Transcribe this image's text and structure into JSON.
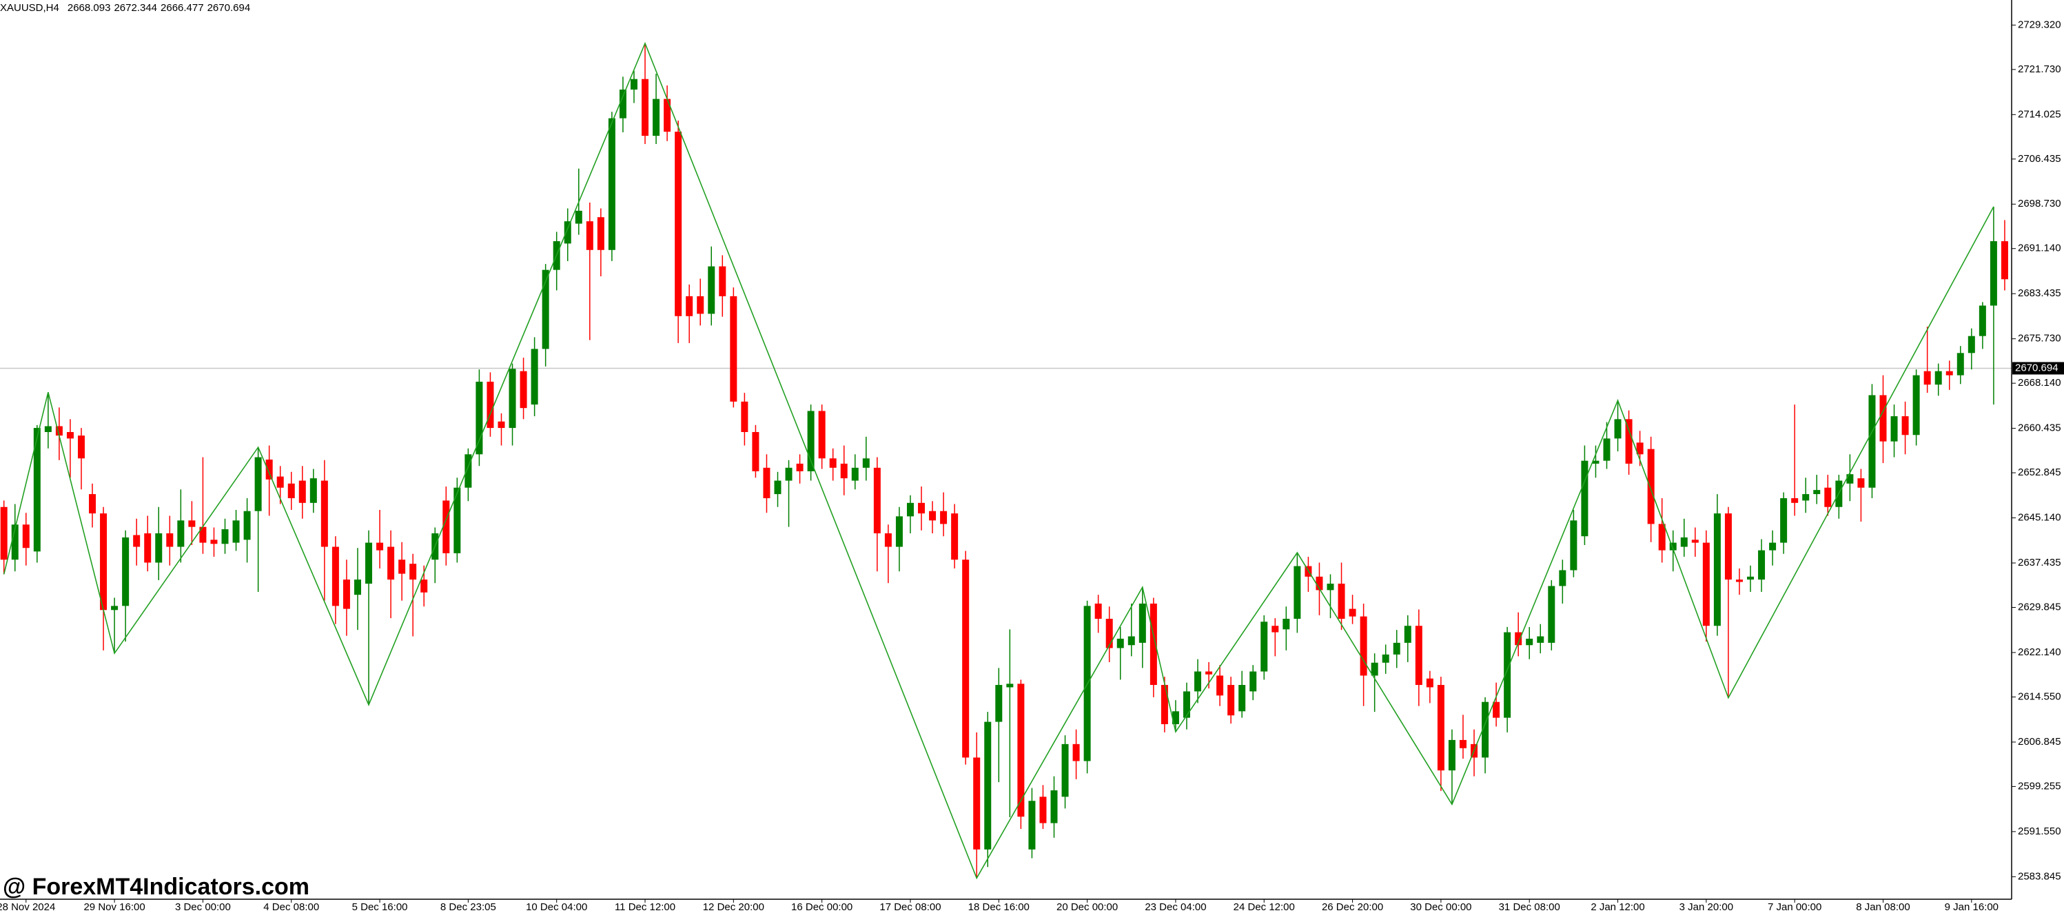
{
  "chart_data": {
    "type": "candlestick",
    "symbol": "XAUUSD,H4",
    "quote": [
      2668.093,
      2672.344,
      2666.477,
      2670.694
    ],
    "watermark": "@ ForexMT4Indicators.com",
    "up_color": "#008000",
    "down_color": "#ff0000",
    "bid": 2670.694,
    "ylim": [
      2580.0,
      2733.6
    ],
    "yticks": [
      {
        "value": 2729.32,
        "label": "2729.320"
      },
      {
        "value": 2721.73,
        "label": "2721.730"
      },
      2714.025,
      2706.435,
      {
        "value": 2698.73,
        "label": "2698.730"
      },
      {
        "value": 2691.14,
        "label": "2691.140"
      },
      2683.435,
      {
        "value": 2675.73,
        "label": "2675.730"
      },
      {
        "value": 2668.14,
        "label": "2668.140"
      },
      2660.435,
      2652.845,
      {
        "value": 2645.14,
        "label": "2645.140"
      },
      2637.435,
      2629.845,
      {
        "value": 2622.14,
        "label": "2622.140"
      },
      {
        "value": 2614.55,
        "label": "2614.550"
      },
      2606.845,
      2599.255,
      {
        "value": 2591.55,
        "label": "2591.550"
      },
      2583.845
    ],
    "categories": [
      null,
      null,
      "28 Nov 2024",
      null,
      null,
      null,
      null,
      null,
      null,
      null,
      "29 Nov 16:00",
      null,
      null,
      null,
      null,
      null,
      null,
      null,
      "3 Dec 00:00",
      null,
      null,
      null,
      null,
      null,
      null,
      null,
      "4 Dec 08:00",
      null,
      null,
      null,
      null,
      null,
      null,
      null,
      "5 Dec 16:00",
      null,
      null,
      null,
      null,
      null,
      null,
      null,
      "8 Dec 23:05",
      null,
      null,
      null,
      null,
      null,
      null,
      null,
      "10 Dec 04:00",
      null,
      null,
      null,
      null,
      null,
      null,
      null,
      "11 Dec 12:00",
      null,
      null,
      null,
      null,
      null,
      null,
      null,
      "12 Dec 20:00",
      null,
      null,
      null,
      null,
      null,
      null,
      null,
      "16 Dec 00:00",
      null,
      null,
      null,
      null,
      null,
      null,
      null,
      "17 Dec 08:00",
      null,
      null,
      null,
      null,
      null,
      null,
      null,
      "18 Dec 16:00",
      null,
      null,
      null,
      null,
      null,
      null,
      null,
      "20 Dec 00:00",
      null,
      null,
      null,
      null,
      null,
      null,
      null,
      "23 Dec 04:00",
      null,
      null,
      null,
      null,
      null,
      null,
      null,
      "24 Dec 12:00",
      null,
      null,
      null,
      null,
      null,
      null,
      null,
      "26 Dec 20:00",
      null,
      null,
      null,
      null,
      null,
      null,
      null,
      "30 Dec 00:00",
      null,
      null,
      null,
      null,
      null,
      null,
      null,
      "31 Dec 08:00",
      null,
      null,
      null,
      null,
      null,
      null,
      null,
      "2 Jan 12:00",
      null,
      null,
      null,
      null,
      null,
      null,
      null,
      "3 Jan 20:00",
      null,
      null,
      null,
      null,
      null,
      null,
      null,
      "7 Jan 00:00",
      null,
      null,
      null,
      null,
      null,
      null,
      null,
      "8 Jan 08:00",
      null,
      null,
      null,
      null,
      null,
      null,
      null,
      "9 Jan 16:00",
      null,
      null,
      null
    ],
    "open": [
      2647.0,
      2638.0,
      2644.0,
      2639.4,
      2659.8,
      2660.8,
      2659.8,
      2659.2,
      2649.2,
      2645.9,
      2629.4,
      2630.1,
      2642.2,
      2642.5,
      2637.5,
      2642.5,
      2640.2,
      2644.7,
      2643.6,
      2641.4,
      2640.7,
      2640.9,
      2641.4,
      2646.3,
      2655.1,
      2652.2,
      2651.0,
      2651.5,
      2647.7,
      2651.5,
      2640.2,
      2634.6,
      2632.0,
      2633.9,
      2640.9,
      2640.2,
      2638.0,
      2637.3,
      2634.6,
      2638.0,
      2648.1,
      2639.1,
      2650.3,
      2656.0,
      2668.4,
      2661.6,
      2660.5,
      2670.2,
      2664.5,
      2674.0,
      2687.5,
      2692.0,
      2695.4,
      2695.8,
      2696.5,
      2690.9,
      2713.4,
      2718.3,
      2720.1,
      2710.4,
      2716.7,
      2711.1,
      2683.0,
      2683.0,
      2680.0,
      2688.1,
      2683.0,
      2665.0,
      2659.8,
      2653.7,
      2649.2,
      2651.5,
      2654.4,
      2653.1,
      2663.4,
      2655.3,
      2654.4,
      2651.5,
      2653.7,
      2653.7,
      2642.5,
      2640.2,
      2645.4,
      2647.7,
      2646.3,
      2646.3,
      2645.9,
      2638.0,
      2604.2,
      2588.5,
      2610.3,
      2616.2,
      2616.8,
      2588.5,
      2597.5,
      2593.0,
      2597.5,
      2606.5,
      2603.6,
      2630.5,
      2627.9,
      2622.9,
      2623.4,
      2623.8,
      2630.5,
      2616.6,
      2609.9,
      2611.0,
      2615.5,
      2618.9,
      2618.2,
      2616.6,
      2612.1,
      2615.5,
      2618.9,
      2626.7,
      2626.1,
      2627.9,
      2636.9,
      2635.1,
      2632.8,
      2633.9,
      2629.6,
      2628.3,
      2618.2,
      2620.4,
      2621.8,
      2623.8,
      2626.7,
      2617.7,
      2616.6,
      2602.0,
      2607.2,
      2606.5,
      2604.2,
      2613.7,
      2611.0,
      2625.6,
      2623.4,
      2623.8,
      2623.8,
      2633.5,
      2636.2,
      2642.0,
      2654.4,
      2654.9,
      2658.7,
      2662.0,
      2658.0,
      2656.9,
      2644.1,
      2639.6,
      2640.2,
      2641.4,
      2640.9,
      2626.7,
      2645.9,
      2634.6,
      2634.6,
      2634.6,
      2639.6,
      2640.9,
      2648.5,
      2648.1,
      2649.2,
      2650.3,
      2647.0,
      2651.0,
      2651.9,
      2650.3,
      2666.1,
      2658.2,
      2662.5,
      2659.3,
      2670.2,
      2667.9,
      2670.2,
      2669.5,
      2673.3,
      2676.2,
      2681.4,
      2692.4
    ],
    "high": [
      2648.1,
      2647.5,
      2646.0,
      2661.0,
      2666.6,
      2664.0,
      2662.0,
      2660.5,
      2651.0,
      2647.0,
      2631.5,
      2643.0,
      2645.0,
      2645.5,
      2647.0,
      2645.5,
      2650.0,
      2648.0,
      2655.5,
      2643.5,
      2645.0,
      2646.5,
      2648.5,
      2657.2,
      2657.5,
      2654.0,
      2653.0,
      2654.0,
      2653.5,
      2655.0,
      2642.0,
      2638.0,
      2640.0,
      2643.0,
      2646.5,
      2643.0,
      2641.0,
      2639.0,
      2637.0,
      2643.5,
      2650.5,
      2652.0,
      2657.0,
      2670.5,
      2670.0,
      2663.0,
      2671.5,
      2672.5,
      2676.0,
      2688.5,
      2694.0,
      2698.0,
      2704.8,
      2699.0,
      2698.0,
      2714.5,
      2720.5,
      2721.5,
      2726.2,
      2721.0,
      2719.0,
      2713.0,
      2685.0,
      2686.0,
      2691.5,
      2690.0,
      2684.5,
      2666.5,
      2661.0,
      2656.0,
      2653.0,
      2655.0,
      2656.0,
      2664.5,
      2664.5,
      2657.0,
      2657.5,
      2656.0,
      2659.0,
      2655.5,
      2644.0,
      2647.0,
      2649.0,
      2650.5,
      2648.0,
      2649.5,
      2647.5,
      2639.5,
      2608.5,
      2612.0,
      2619.5,
      2626.1,
      2617.5,
      2599.0,
      2599.5,
      2601.0,
      2608.0,
      2609.0,
      2631.0,
      2632.0,
      2630.0,
      2626.5,
      2630.5,
      2633.3,
      2631.5,
      2618.0,
      2614.0,
      2617.0,
      2621.0,
      2620.5,
      2620.0,
      2618.0,
      2619.0,
      2620.0,
      2628.5,
      2628.0,
      2630.0,
      2639.2,
      2638.5,
      2637.5,
      2635.5,
      2637.5,
      2632.0,
      2630.5,
      2622.0,
      2623.5,
      2626.0,
      2628.5,
      2629.5,
      2619.0,
      2618.0,
      2609.0,
      2611.5,
      2609.0,
      2614.5,
      2617.0,
      2626.5,
      2629.0,
      2626.5,
      2627.0,
      2634.5,
      2638.0,
      2646.5,
      2657.5,
      2657.5,
      2661.5,
      2665.2,
      2663.5,
      2660.0,
      2659.0,
      2648.5,
      2643.0,
      2645.0,
      2643.5,
      2643.0,
      2649.2,
      2647.0,
      2636.5,
      2637.0,
      2641.5,
      2643.0,
      2649.5,
      2664.5,
      2652.0,
      2652.5,
      2652.5,
      2652.5,
      2656.0,
      2653.5,
      2668.0,
      2669.5,
      2664.5,
      2665.0,
      2670.5,
      2677.8,
      2671.5,
      2672.0,
      2674.5,
      2677.5,
      2682.0,
      2698.3,
      2696.0
    ],
    "low": [
      2635.5,
      2636.0,
      2637.0,
      2637.5,
      2657.0,
      2655.0,
      2652.0,
      2650.0,
      2643.5,
      2622.5,
      2622.0,
      2624.0,
      2637.0,
      2636.0,
      2634.5,
      2637.0,
      2637.5,
      2640.5,
      2639.0,
      2638.5,
      2639.0,
      2639.5,
      2637.5,
      2632.5,
      2645.5,
      2647.5,
      2646.5,
      2645.0,
      2646.0,
      2631.0,
      2627.0,
      2625.0,
      2626.0,
      2613.2,
      2636.5,
      2628.0,
      2631.0,
      2624.9,
      2630.0,
      2634.0,
      2637.0,
      2637.5,
      2648.0,
      2654.0,
      2659.0,
      2657.5,
      2657.5,
      2662.0,
      2662.5,
      2671.0,
      2684.0,
      2689.0,
      2693.5,
      2675.5,
      2686.4,
      2689.0,
      2711.0,
      2716.0,
      2709.0,
      2709.0,
      2709.5,
      2675.0,
      2675.0,
      2678.0,
      2678.0,
      2679.5,
      2664.0,
      2657.5,
      2652.0,
      2646.0,
      2647.0,
      2643.6,
      2651.0,
      2651.5,
      2653.5,
      2651.5,
      2649.0,
      2650.0,
      2651.5,
      2636.0,
      2634.0,
      2636.0,
      2642.5,
      2643.0,
      2642.5,
      2642.0,
      2636.5,
      2603.0,
      2583.6,
      2585.5,
      2600.0,
      2594.0,
      2592.0,
      2587.0,
      2592.0,
      2590.5,
      2595.5,
      2600.5,
      2601.5,
      2625.5,
      2620.5,
      2617.5,
      2621.5,
      2619.5,
      2614.5,
      2608.5,
      2608.6,
      2609.0,
      2613.5,
      2616.0,
      2613.0,
      2610.0,
      2611.0,
      2614.0,
      2617.5,
      2621.5,
      2622.5,
      2625.5,
      2632.5,
      2628.5,
      2628.0,
      2626.0,
      2627.0,
      2613.0,
      2612.0,
      2618.5,
      2619.5,
      2620.5,
      2613.0,
      2613.5,
      2598.5,
      2596.2,
      2604.0,
      2601.0,
      2601.5,
      2609.5,
      2608.5,
      2621.5,
      2621.0,
      2622.0,
      2622.5,
      2630.5,
      2635.0,
      2640.5,
      2652.0,
      2653.5,
      2656.5,
      2652.5,
      2654.0,
      2641.0,
      2637.5,
      2636.0,
      2638.5,
      2638.5,
      2624.0,
      2625.0,
      2614.4,
      2632.0,
      2632.5,
      2632.5,
      2637.0,
      2639.0,
      2645.5,
      2646.0,
      2647.5,
      2645.5,
      2645.0,
      2648.0,
      2644.5,
      2648.5,
      2654.5,
      2655.5,
      2656.0,
      2657.5,
      2666.5,
      2666.0,
      2667.0,
      2668.0,
      2670.5,
      2674.0,
      2664.5,
      2684.0
    ],
    "close": [
      2638.0,
      2644.0,
      2640.0,
      2660.5,
      2660.8,
      2659.2,
      2658.7,
      2655.3,
      2645.9,
      2629.4,
      2630.1,
      2641.8,
      2640.2,
      2637.5,
      2642.5,
      2640.2,
      2644.7,
      2643.6,
      2640.9,
      2640.7,
      2643.2,
      2644.7,
      2646.3,
      2655.5,
      2651.7,
      2650.3,
      2648.5,
      2647.7,
      2651.9,
      2640.2,
      2630.1,
      2629.6,
      2634.6,
      2640.9,
      2639.6,
      2634.6,
      2635.6,
      2634.6,
      2632.4,
      2642.5,
      2639.1,
      2650.3,
      2656.0,
      2668.4,
      2660.5,
      2660.5,
      2670.6,
      2663.9,
      2674.0,
      2687.5,
      2692.4,
      2695.8,
      2697.6,
      2690.9,
      2690.9,
      2713.4,
      2718.3,
      2720.1,
      2710.4,
      2716.7,
      2711.1,
      2679.6,
      2679.6,
      2680.0,
      2688.1,
      2683.0,
      2665.0,
      2659.8,
      2653.1,
      2648.5,
      2651.5,
      2653.7,
      2653.1,
      2663.4,
      2655.3,
      2653.7,
      2651.9,
      2653.7,
      2655.3,
      2642.5,
      2640.2,
      2645.4,
      2647.7,
      2645.9,
      2644.7,
      2644.1,
      2638.0,
      2604.2,
      2588.5,
      2610.3,
      2616.6,
      2616.8,
      2594.1,
      2596.8,
      2593.0,
      2598.6,
      2606.5,
      2603.6,
      2630.1,
      2627.9,
      2622.9,
      2624.5,
      2624.9,
      2630.5,
      2616.6,
      2609.9,
      2612.1,
      2615.5,
      2618.9,
      2618.4,
      2614.8,
      2611.4,
      2616.6,
      2618.9,
      2627.4,
      2625.6,
      2627.9,
      2636.9,
      2635.1,
      2632.8,
      2633.9,
      2627.9,
      2628.3,
      2618.2,
      2620.4,
      2621.8,
      2623.8,
      2626.7,
      2616.6,
      2616.2,
      2602.0,
      2607.2,
      2605.8,
      2604.2,
      2613.7,
      2611.0,
      2625.6,
      2623.4,
      2624.5,
      2624.9,
      2633.5,
      2636.2,
      2644.7,
      2654.9,
      2654.9,
      2658.7,
      2662.0,
      2654.4,
      2656.0,
      2644.1,
      2639.6,
      2640.9,
      2641.8,
      2640.9,
      2626.7,
      2645.9,
      2634.6,
      2634.2,
      2635.1,
      2639.6,
      2640.9,
      2648.5,
      2647.7,
      2649.2,
      2649.9,
      2647.0,
      2651.5,
      2652.6,
      2650.3,
      2666.1,
      2658.2,
      2662.5,
      2659.3,
      2669.5,
      2667.9,
      2670.2,
      2669.5,
      2673.3,
      2676.2,
      2681.4,
      2692.4,
      2685.9
    ],
    "zigzag": {
      "color": "#22a022",
      "x": [
        0,
        4,
        10,
        23,
        33,
        58,
        88,
        103,
        106,
        117,
        131,
        146,
        156,
        180
      ],
      "values": [
        2635.5,
        2666.6,
        2622.0,
        2657.2,
        2613.2,
        2726.2,
        2583.6,
        2633.3,
        2608.6,
        2639.2,
        2596.2,
        2665.2,
        2614.4,
        2698.3
      ]
    }
  }
}
